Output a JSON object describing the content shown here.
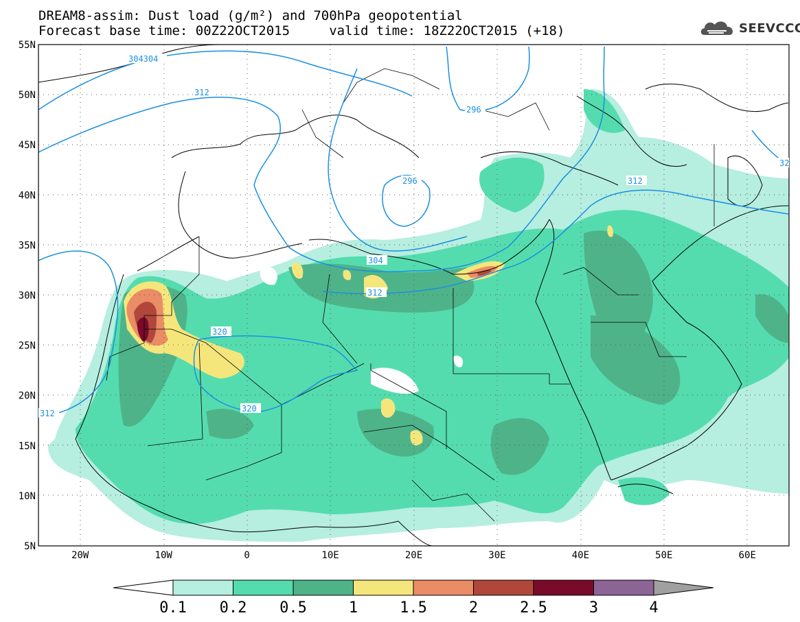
{
  "title": {
    "line1": "DREAM8-assim: Dust load (g/m²) and 700hPa geopotential",
    "line2": "Forecast base time: 00Z22OCT2015     valid time: 18Z22OCT2015 (+18)"
  },
  "logo": {
    "text": "SEEVCCC",
    "icon": "cloud-logo-icon"
  },
  "axes": {
    "lat_labels": [
      "55N",
      "50N",
      "45N",
      "40N",
      "35N",
      "30N",
      "25N",
      "20N",
      "15N",
      "10N",
      "5N"
    ],
    "lon_labels": [
      "20W",
      "10W",
      "0",
      "10E",
      "20E",
      "30E",
      "40E",
      "50E",
      "60E"
    ],
    "lat_range": [
      5,
      55
    ],
    "lon_range": [
      -25,
      65
    ]
  },
  "contours": [
    {
      "label": "304304"
    },
    {
      "label": "312"
    },
    {
      "label": "296"
    },
    {
      "label": "296"
    },
    {
      "label": "312"
    },
    {
      "label": "304"
    },
    {
      "label": "312"
    },
    {
      "label": "320"
    },
    {
      "label": "320"
    },
    {
      "label": "312"
    },
    {
      "label": "32"
    }
  ],
  "colorbar": {
    "ticks": [
      "0.1",
      "0.2",
      "0.5",
      "1",
      "1.5",
      "2",
      "2.5",
      "3",
      "4"
    ],
    "colors": [
      "#ffffff",
      "#b6eee0",
      "#55dcae",
      "#4fb38a",
      "#f5e67c",
      "#ea8c65",
      "#b0473a",
      "#7a0a2a",
      "#8c6496",
      "#a0a0a0"
    ]
  },
  "colors": {
    "dust_light": "#b6eee0",
    "dust_mid": "#55dcae",
    "dust_dark": "#4fb38a",
    "dust_yellow": "#f5e67c",
    "dust_orange": "#ea8c65",
    "dust_red": "#b0473a",
    "dust_maroon": "#7a0a2a",
    "contour_line": "#1a8fe0"
  }
}
